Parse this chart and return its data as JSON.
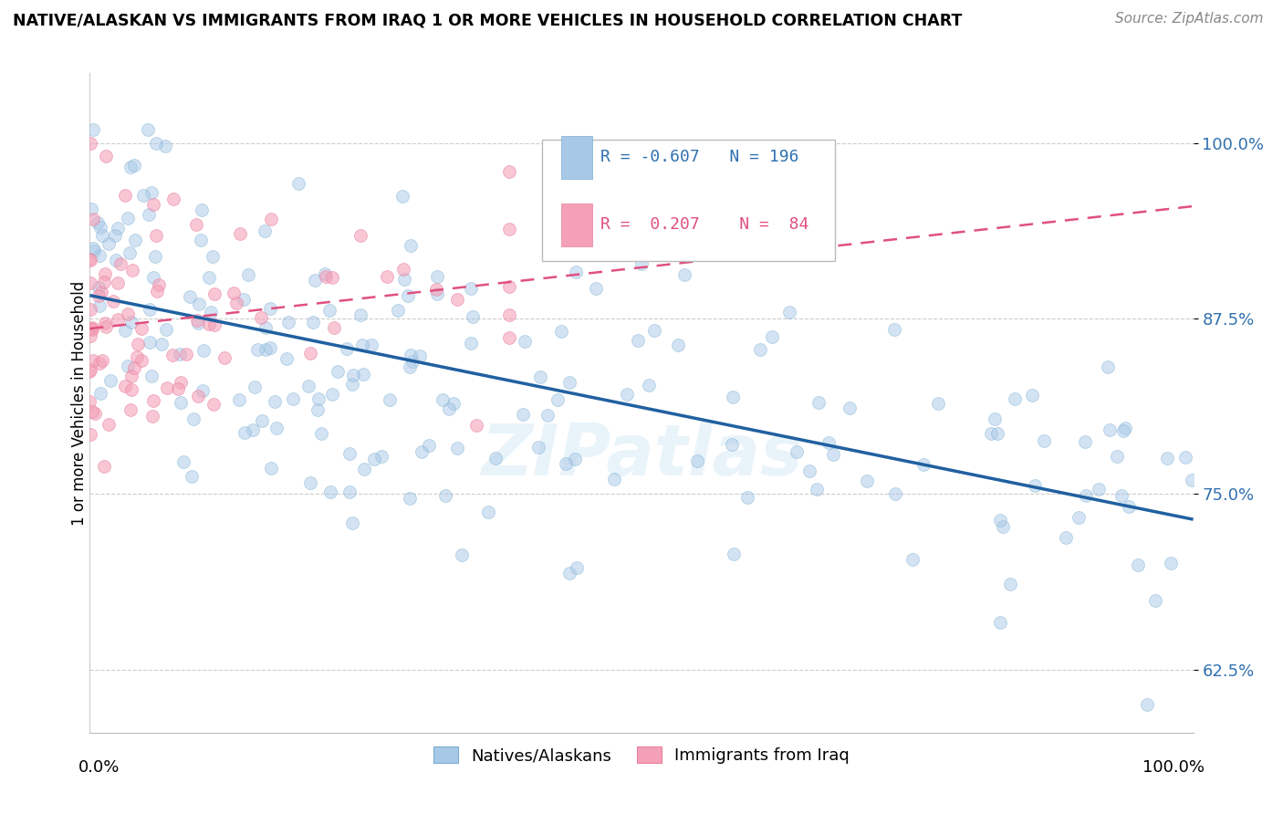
{
  "title": "NATIVE/ALASKAN VS IMMIGRANTS FROM IRAQ 1 OR MORE VEHICLES IN HOUSEHOLD CORRELATION CHART",
  "source": "Source: ZipAtlas.com",
  "ylabel": "1 or more Vehicles in Household",
  "ytick_labels": [
    "62.5%",
    "75.0%",
    "87.5%",
    "100.0%"
  ],
  "ytick_values": [
    0.625,
    0.75,
    0.875,
    1.0
  ],
  "xlim": [
    0.0,
    1.0
  ],
  "ylim": [
    0.58,
    1.05
  ],
  "r_blue": -0.607,
  "n_blue": 196,
  "r_pink": 0.207,
  "n_pink": 84,
  "blue_color": "#a8c8e8",
  "pink_color": "#f4a0b8",
  "blue_edge_color": "#7aaed0",
  "pink_edge_color": "#e880a0",
  "blue_line_color": "#2060a0",
  "pink_line_color": "#e05080",
  "legend_label_blue": "Natives/Alaskans",
  "legend_label_pink": "Immigrants from Iraq",
  "watermark": "ZIPatlas",
  "marker_size": 10,
  "alpha_blue": 0.5,
  "alpha_pink": 0.6,
  "blue_seed": 12,
  "pink_seed": 7
}
